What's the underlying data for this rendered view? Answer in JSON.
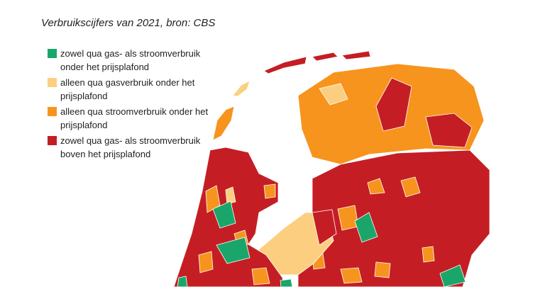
{
  "title": "Verbruikscijfers van 2021, bron: CBS",
  "legend": [
    {
      "label": "zowel qua gas- als stroomverbruik onder het prijsplafond",
      "color": "#1aa66a"
    },
    {
      "label": "alleen qua gasverbruik onder het prijsplafond",
      "color": "#fccf80"
    },
    {
      "label": "alleen qua stroomverbruik onder het prijsplafond",
      "color": "#f7941d"
    },
    {
      "label": "zowel qua gas- als stroomverbruik boven het prijsplafond",
      "color": "#c41e24"
    }
  ]
}
